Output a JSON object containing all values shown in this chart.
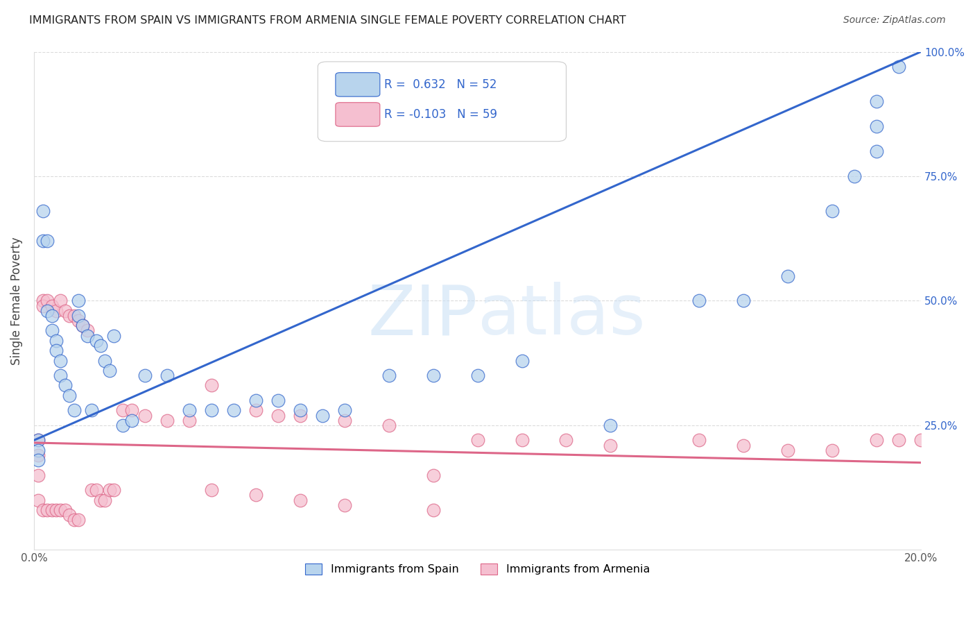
{
  "title": "IMMIGRANTS FROM SPAIN VS IMMIGRANTS FROM ARMENIA SINGLE FEMALE POVERTY CORRELATION CHART",
  "source": "Source: ZipAtlas.com",
  "ylabel": "Single Female Poverty",
  "legend_spain_text": "R =  0.632   N = 52",
  "legend_armenia_text": "R = -0.103   N = 59",
  "legend_label_spain": "Immigrants from Spain",
  "legend_label_armenia": "Immigrants from Armenia",
  "color_spain_fill": "#b8d4ed",
  "color_armenia_fill": "#f5bfd0",
  "color_line_spain": "#3366cc",
  "color_line_armenia": "#dd6688",
  "color_legend_text": "#3366cc",
  "background_color": "#ffffff",
  "grid_color": "#cccccc",
  "title_color": "#222222",
  "source_color": "#555555",
  "watermark_color": "#ddeeff",
  "xlim": [
    0,
    0.2
  ],
  "ylim": [
    0,
    1.0
  ],
  "right_yticks": [
    1.0,
    0.75,
    0.5,
    0.25
  ],
  "right_yticklabels": [
    "100.0%",
    "75.0%",
    "50.0%",
    "25.0%"
  ],
  "blue_line_y0": 0.22,
  "blue_line_y1": 1.0,
  "pink_line_y0": 0.215,
  "pink_line_y1": 0.175,
  "spain_x": [
    0.001,
    0.001,
    0.001,
    0.002,
    0.002,
    0.003,
    0.003,
    0.004,
    0.004,
    0.005,
    0.005,
    0.006,
    0.006,
    0.007,
    0.008,
    0.009,
    0.01,
    0.01,
    0.011,
    0.012,
    0.013,
    0.014,
    0.015,
    0.016,
    0.017,
    0.018,
    0.02,
    0.022,
    0.025,
    0.03,
    0.035,
    0.04,
    0.045,
    0.05,
    0.055,
    0.06,
    0.065,
    0.07,
    0.08,
    0.09,
    0.1,
    0.11,
    0.13,
    0.15,
    0.16,
    0.17,
    0.18,
    0.185,
    0.19,
    0.19,
    0.19,
    0.195
  ],
  "spain_y": [
    0.22,
    0.2,
    0.18,
    0.68,
    0.62,
    0.62,
    0.48,
    0.47,
    0.44,
    0.42,
    0.4,
    0.38,
    0.35,
    0.33,
    0.31,
    0.28,
    0.5,
    0.47,
    0.45,
    0.43,
    0.28,
    0.42,
    0.41,
    0.38,
    0.36,
    0.43,
    0.25,
    0.26,
    0.35,
    0.35,
    0.28,
    0.28,
    0.28,
    0.3,
    0.3,
    0.28,
    0.27,
    0.28,
    0.35,
    0.35,
    0.35,
    0.38,
    0.25,
    0.5,
    0.5,
    0.55,
    0.68,
    0.75,
    0.8,
    0.85,
    0.9,
    0.97
  ],
  "armenia_x": [
    0.001,
    0.001,
    0.001,
    0.001,
    0.002,
    0.002,
    0.002,
    0.003,
    0.003,
    0.004,
    0.004,
    0.005,
    0.005,
    0.006,
    0.006,
    0.007,
    0.007,
    0.008,
    0.008,
    0.009,
    0.009,
    0.01,
    0.01,
    0.011,
    0.012,
    0.013,
    0.014,
    0.015,
    0.016,
    0.017,
    0.018,
    0.02,
    0.022,
    0.025,
    0.03,
    0.035,
    0.04,
    0.05,
    0.055,
    0.06,
    0.07,
    0.08,
    0.09,
    0.1,
    0.11,
    0.12,
    0.13,
    0.15,
    0.16,
    0.17,
    0.18,
    0.19,
    0.195,
    0.2,
    0.04,
    0.05,
    0.06,
    0.07,
    0.09
  ],
  "armenia_y": [
    0.22,
    0.19,
    0.15,
    0.1,
    0.5,
    0.49,
    0.08,
    0.5,
    0.08,
    0.49,
    0.08,
    0.48,
    0.08,
    0.5,
    0.08,
    0.48,
    0.08,
    0.47,
    0.07,
    0.47,
    0.06,
    0.46,
    0.06,
    0.45,
    0.44,
    0.12,
    0.12,
    0.1,
    0.1,
    0.12,
    0.12,
    0.28,
    0.28,
    0.27,
    0.26,
    0.26,
    0.33,
    0.28,
    0.27,
    0.27,
    0.26,
    0.25,
    0.15,
    0.22,
    0.22,
    0.22,
    0.21,
    0.22,
    0.21,
    0.2,
    0.2,
    0.22,
    0.22,
    0.22,
    0.12,
    0.11,
    0.1,
    0.09,
    0.08
  ]
}
